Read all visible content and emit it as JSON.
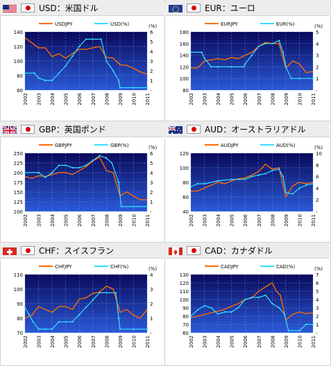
{
  "panels": [
    {
      "code": "USD",
      "title": "USD：米国ドル",
      "flag": "us-flag"
    },
    {
      "code": "EUR",
      "title": "EUR：ユーロ",
      "flag": "eu-flag"
    },
    {
      "code": "GBP",
      "title": "GBP：英国ポンド",
      "flag": "uk-flag"
    },
    {
      "code": "AUD",
      "title": "AUD：オーストラリアドル",
      "flag": "au-flag"
    },
    {
      "code": "CHF",
      "title": "CHF：スイスフラン",
      "flag": "ch-flag"
    },
    {
      "code": "CAD",
      "title": "CAD：カナダドル",
      "flag": "ca-flag"
    }
  ],
  "colors": {
    "jpy_series": "#ff6a00",
    "rate_series": "#33e0ff",
    "plot_bg_top": "#0a0a5a",
    "plot_bg_bottom": "#2a5ad8"
  },
  "chart_data": [
    {
      "type": "line",
      "x_ticks": [
        "2002",
        "2003",
        "2004",
        "2005",
        "2006",
        "2007",
        "2008",
        "2009",
        "2010",
        "2011"
      ],
      "y_left_unit": "",
      "y_right_unit": "(%)",
      "y_left_ticks": [
        "60",
        "80",
        "100",
        "120",
        "140"
      ],
      "y_right_ticks": [
        "-",
        "1",
        "2",
        "3",
        "4",
        "5",
        "6"
      ],
      "y_left_lim": [
        60,
        140
      ],
      "y_right_lim": [
        0,
        6
      ],
      "series": [
        {
          "name": "USDJPY",
          "axis": "left",
          "x": [
            2002.0,
            2002.5,
            2003.0,
            2003.5,
            2004.0,
            2004.5,
            2005.0,
            2005.5,
            2006.0,
            2006.5,
            2007.0,
            2007.5,
            2008.0,
            2008.5,
            2009.0,
            2009.5,
            2010.0,
            2010.5,
            2011.0
          ],
          "y": [
            132,
            125,
            118,
            118,
            106,
            110,
            104,
            110,
            116,
            116,
            118,
            120,
            105,
            104,
            95,
            94,
            90,
            85,
            82
          ]
        },
        {
          "name": "USD(%)",
          "axis": "right",
          "x": [
            2002.0,
            2002.7,
            2003.0,
            2003.5,
            2004.0,
            2004.5,
            2005.0,
            2005.5,
            2006.0,
            2006.5,
            2007.0,
            2007.6,
            2008.0,
            2008.5,
            2008.9,
            2009.0,
            2010.0,
            2011.0
          ],
          "y": [
            1.75,
            1.75,
            1.25,
            1.0,
            1.0,
            1.75,
            2.5,
            3.5,
            4.5,
            5.25,
            5.25,
            5.25,
            3.0,
            2.0,
            1.0,
            0.25,
            0.25,
            0.25
          ]
        }
      ]
    },
    {
      "type": "line",
      "x_ticks": [
        "2002",
        "2003",
        "2004",
        "2005",
        "2006",
        "2007",
        "2008",
        "2009",
        "2010",
        "2011"
      ],
      "y_left_unit": "",
      "y_right_unit": "(%)",
      "y_left_ticks": [
        "80",
        "100",
        "120",
        "140",
        "160",
        "180"
      ],
      "y_right_ticks": [
        "-",
        "1",
        "2",
        "3",
        "4",
        "5"
      ],
      "y_left_lim": [
        80,
        180
      ],
      "y_right_lim": [
        0,
        5
      ],
      "series": [
        {
          "name": "EURJPY",
          "axis": "left",
          "x": [
            2002.0,
            2002.5,
            2003.0,
            2003.5,
            2004.0,
            2004.5,
            2005.0,
            2005.5,
            2006.0,
            2006.5,
            2007.0,
            2007.5,
            2008.0,
            2008.5,
            2009.0,
            2009.5,
            2010.0,
            2010.5,
            2011.0
          ],
          "y": [
            118,
            118,
            130,
            132,
            134,
            132,
            136,
            134,
            140,
            145,
            155,
            162,
            160,
            160,
            118,
            130,
            125,
            110,
            112
          ]
        },
        {
          "name": "EUR(%)",
          "axis": "right",
          "x": [
            2002.0,
            2002.8,
            2003.0,
            2003.5,
            2004.0,
            2005.0,
            2005.9,
            2006.0,
            2006.5,
            2007.0,
            2007.5,
            2008.0,
            2008.5,
            2008.8,
            2009.0,
            2009.4,
            2010.0,
            2011.0
          ],
          "y": [
            3.25,
            3.25,
            2.75,
            2.0,
            2.0,
            2.0,
            2.0,
            2.25,
            3.0,
            3.75,
            4.0,
            4.0,
            4.25,
            3.25,
            2.0,
            1.0,
            1.0,
            1.0
          ]
        }
      ]
    },
    {
      "type": "line",
      "x_ticks": [
        "2002",
        "2003",
        "2004",
        "2005",
        "2006",
        "2007",
        "2008",
        "2009",
        "2010",
        "2011"
      ],
      "y_left_unit": "",
      "y_right_unit": "(%)",
      "y_left_ticks": [
        "100",
        "125",
        "150",
        "175",
        "200",
        "225",
        "250"
      ],
      "y_right_ticks": [
        "-",
        "1",
        "2",
        "3",
        "4",
        "5",
        "6"
      ],
      "y_left_lim": [
        100,
        250
      ],
      "y_right_lim": [
        0,
        6
      ],
      "series": [
        {
          "name": "GBPJPY",
          "axis": "left",
          "x": [
            2002.0,
            2002.5,
            2003.0,
            2003.5,
            2004.0,
            2004.5,
            2005.0,
            2005.5,
            2006.0,
            2006.5,
            2007.0,
            2007.5,
            2008.0,
            2008.5,
            2009.0,
            2009.5,
            2010.0,
            2010.5,
            2011.0
          ],
          "y": [
            190,
            185,
            192,
            190,
            195,
            200,
            200,
            195,
            205,
            215,
            230,
            240,
            205,
            200,
            140,
            150,
            140,
            130,
            130
          ]
        },
        {
          "name": "GBP(%)",
          "axis": "right",
          "x": [
            2002.0,
            2003.0,
            2003.5,
            2004.0,
            2004.5,
            2005.0,
            2005.5,
            2006.0,
            2006.5,
            2007.0,
            2007.5,
            2008.0,
            2008.4,
            2008.9,
            2009.1,
            2010.0,
            2011.0
          ],
          "y": [
            4.0,
            4.0,
            3.5,
            4.0,
            4.75,
            4.75,
            4.5,
            4.5,
            4.75,
            5.25,
            5.75,
            5.5,
            5.0,
            3.0,
            0.5,
            0.5,
            0.5
          ]
        }
      ]
    },
    {
      "type": "line",
      "x_ticks": [
        "2002",
        "2003",
        "2004",
        "2005",
        "2006",
        "2007",
        "2008",
        "2009",
        "2010",
        "2011"
      ],
      "y_left_unit": "",
      "y_right_unit": "(%)",
      "y_left_ticks": [
        "40",
        "60",
        "80",
        "100",
        "120"
      ],
      "y_right_ticks": [
        "-",
        "2",
        "4",
        "6",
        "8",
        "10"
      ],
      "y_left_lim": [
        40,
        120
      ],
      "y_right_lim": [
        0,
        10
      ],
      "series": [
        {
          "name": "AUDJPY",
          "axis": "left",
          "x": [
            2002.0,
            2002.5,
            2003.0,
            2003.5,
            2004.0,
            2004.5,
            2005.0,
            2005.5,
            2006.0,
            2006.5,
            2007.0,
            2007.5,
            2008.0,
            2008.5,
            2009.0,
            2009.5,
            2010.0,
            2010.5,
            2011.0
          ],
          "y": [
            68,
            68,
            72,
            76,
            80,
            78,
            82,
            85,
            86,
            90,
            95,
            105,
            98,
            100,
            60,
            75,
            80,
            78,
            80
          ]
        },
        {
          "name": "AUD(%)",
          "axis": "right",
          "x": [
            2002.0,
            2002.5,
            2003.0,
            2004.0,
            2005.0,
            2005.5,
            2006.0,
            2006.5,
            2007.0,
            2007.5,
            2008.0,
            2008.5,
            2008.8,
            2009.0,
            2009.5,
            2010.0,
            2010.5,
            2011.0
          ],
          "y": [
            4.25,
            4.75,
            4.75,
            5.25,
            5.5,
            5.5,
            5.5,
            6.0,
            6.25,
            6.5,
            7.0,
            7.25,
            6.0,
            3.25,
            3.0,
            4.0,
            4.5,
            4.75
          ]
        }
      ]
    },
    {
      "type": "line",
      "x_ticks": [
        "2002",
        "2003",
        "2004",
        "2005",
        "2006",
        "2007",
        "2008",
        "2009",
        "2010",
        "2011"
      ],
      "y_left_unit": "",
      "y_right_unit": "(%)",
      "y_left_ticks": [
        "70",
        "80",
        "90",
        "100",
        "110"
      ],
      "y_right_ticks": [
        "-",
        "1",
        "2",
        "3",
        "4"
      ],
      "y_left_lim": [
        70,
        110
      ],
      "y_right_lim": [
        0,
        4
      ],
      "series": [
        {
          "name": "CHFJPY",
          "axis": "left",
          "x": [
            2002.0,
            2002.5,
            2003.0,
            2003.5,
            2004.0,
            2004.5,
            2005.0,
            2005.5,
            2006.0,
            2006.5,
            2007.0,
            2007.5,
            2008.0,
            2008.5,
            2009.0,
            2009.5,
            2010.0,
            2010.5,
            2011.0
          ],
          "y": [
            80,
            82,
            88,
            86,
            84,
            88,
            88,
            86,
            93,
            94,
            97,
            98,
            102,
            100,
            84,
            86,
            82,
            80,
            86
          ]
        },
        {
          "name": "CHF(%)",
          "axis": "right",
          "x": [
            2002.0,
            2002.3,
            2002.6,
            2003.0,
            2003.5,
            2004.0,
            2004.5,
            2005.0,
            2005.5,
            2006.0,
            2006.5,
            2007.0,
            2007.5,
            2008.0,
            2008.7,
            2008.9,
            2009.0,
            2010.0,
            2011.0
          ],
          "y": [
            1.75,
            1.25,
            0.75,
            0.25,
            0.25,
            0.25,
            0.75,
            0.75,
            0.75,
            1.25,
            1.75,
            2.25,
            2.75,
            2.75,
            2.75,
            1.0,
            0.25,
            0.25,
            0.25
          ]
        }
      ]
    },
    {
      "type": "line",
      "x_ticks": [
        "2002",
        "2003",
        "2004",
        "2005",
        "2006",
        "2007",
        "2008",
        "2009",
        "2010",
        "2011"
      ],
      "y_left_unit": "",
      "y_right_unit": "(%)",
      "y_left_ticks": [
        "60",
        "70",
        "80",
        "90",
        "100",
        "110",
        "120",
        "130"
      ],
      "y_right_ticks": [
        "-",
        "1",
        "2",
        "3",
        "4",
        "5",
        "6",
        "7"
      ],
      "y_left_lim": [
        60,
        130
      ],
      "y_right_lim": [
        0,
        7
      ],
      "series": [
        {
          "name": "CADJPY",
          "axis": "left",
          "x": [
            2002.0,
            2002.5,
            2003.0,
            2003.5,
            2004.0,
            2004.5,
            2005.0,
            2005.5,
            2006.0,
            2006.5,
            2007.0,
            2007.5,
            2008.0,
            2008.3,
            2008.6,
            2009.0,
            2009.5,
            2010.0,
            2010.5,
            2011.0
          ],
          "y": [
            78,
            80,
            82,
            84,
            86,
            88,
            92,
            95,
            100,
            102,
            110,
            115,
            120,
            110,
            105,
            75,
            82,
            85,
            83,
            84
          ]
        },
        {
          "name": "CAD(%)",
          "axis": "right",
          "x": [
            2002.0,
            2002.5,
            2003.0,
            2003.5,
            2004.0,
            2004.5,
            2005.0,
            2005.5,
            2006.0,
            2006.5,
            2007.0,
            2007.5,
            2008.0,
            2008.5,
            2008.9,
            2009.2,
            2010.0,
            2010.5,
            2011.0
          ],
          "y": [
            2.0,
            2.75,
            3.25,
            3.0,
            2.25,
            2.5,
            2.5,
            3.0,
            4.0,
            4.25,
            4.25,
            4.5,
            3.5,
            3.0,
            2.25,
            0.25,
            0.25,
            1.0,
            1.0
          ]
        }
      ]
    }
  ]
}
